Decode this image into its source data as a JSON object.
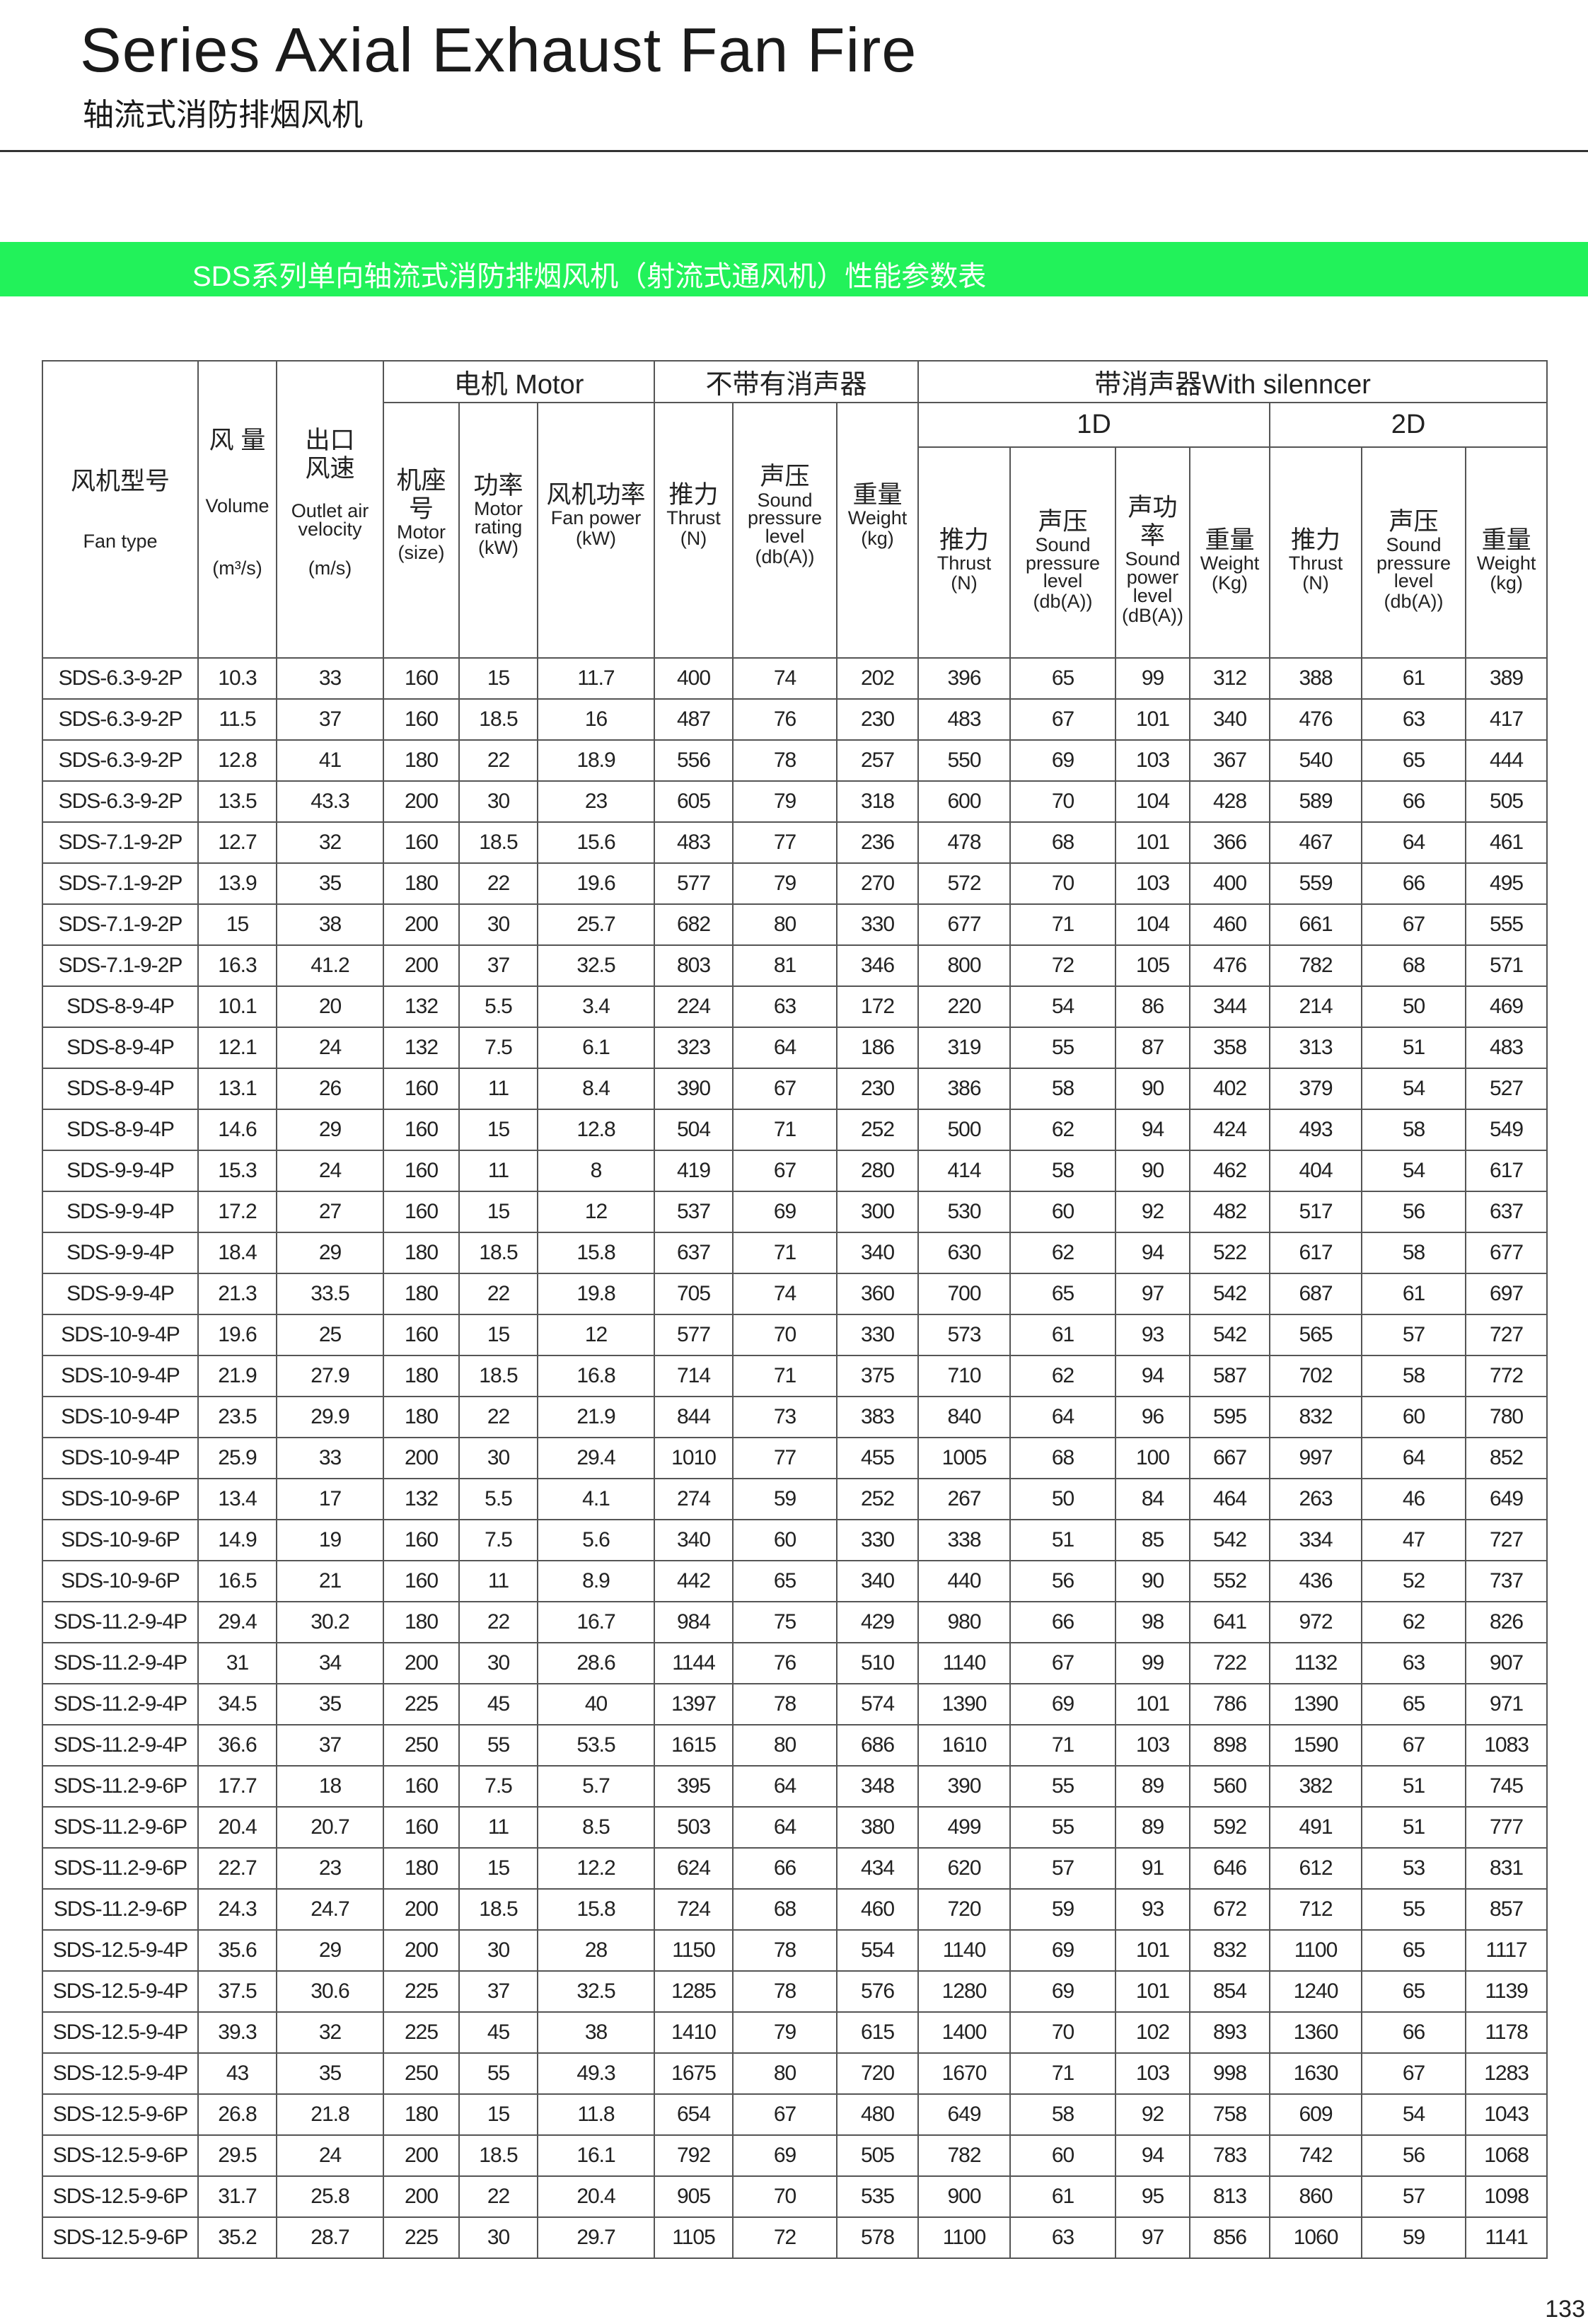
{
  "header": {
    "title": "Series Axial Exhaust Fan Fire",
    "subtitle": "轴流式消防排烟风机"
  },
  "banner": "SDS系列单向轴流式消防排烟风机（射流式通风机）性能参数表",
  "table": {
    "groups": {
      "motor": "电机  Motor",
      "no_silencer": "不带有消声器",
      "with_silencer": "带消声器With silenncer",
      "d1": "1D",
      "d2": "2D"
    },
    "columns": [
      {
        "cn": "风机型号",
        "en": "Fan type"
      },
      {
        "cn": "风 量",
        "en": "Volume",
        "unit": "(m³/s)"
      },
      {
        "cn": [
          "出口",
          "风速"
        ],
        "en": "Outlet air velocity",
        "unit": "(m/s)"
      },
      {
        "cn": "机座号",
        "en": "Motor",
        "unit": "(size)"
      },
      {
        "cn": "功率",
        "en": "Motor rating",
        "unit": "(kW)"
      },
      {
        "cn": "风机功率",
        "en": "Fan power",
        "unit": "(kW)"
      },
      {
        "cn": "推力",
        "en": "Thrust",
        "unit": "(N)"
      },
      {
        "cn": "声压",
        "en": "Sound pressure level",
        "unit": "(db(A))"
      },
      {
        "cn": "重量",
        "en": "Weight",
        "unit": "(kg)"
      },
      {
        "cn": "推力",
        "en": "Thrust",
        "unit": "(N)"
      },
      {
        "cn": "声压",
        "en": "Sound pressure level",
        "unit": "(db(A))"
      },
      {
        "cn": "声功率",
        "en": "Sound power level",
        "unit": "(dB(A))"
      },
      {
        "cn": "重量",
        "en": "Weight",
        "unit": "(Kg)"
      },
      {
        "cn": "推力",
        "en": "Thrust",
        "unit": "(N)"
      },
      {
        "cn": "声压",
        "en": "Sound pressure level",
        "unit": "(db(A))"
      },
      {
        "cn": "重量",
        "en": "Weight",
        "unit": "(kg)"
      }
    ],
    "rows": [
      [
        "SDS-6.3-9-2P",
        10.3,
        33,
        160,
        15,
        11.7,
        400,
        74,
        202,
        396,
        65,
        99,
        312,
        388,
        61,
        389
      ],
      [
        "SDS-6.3-9-2P",
        11.5,
        37,
        160,
        18.5,
        16,
        487,
        76,
        230,
        483,
        67,
        101,
        340,
        476,
        63,
        417
      ],
      [
        "SDS-6.3-9-2P",
        12.8,
        41,
        180,
        22,
        18.9,
        556,
        78,
        257,
        550,
        69,
        103,
        367,
        540,
        65,
        444
      ],
      [
        "SDS-6.3-9-2P",
        13.5,
        43.3,
        200,
        30,
        23,
        605,
        79,
        318,
        600,
        70,
        104,
        428,
        589,
        66,
        505
      ],
      [
        "SDS-7.1-9-2P",
        12.7,
        32,
        160,
        18.5,
        15.6,
        483,
        77,
        236,
        478,
        68,
        101,
        366,
        467,
        64,
        461
      ],
      [
        "SDS-7.1-9-2P",
        13.9,
        35,
        180,
        22,
        19.6,
        577,
        79,
        270,
        572,
        70,
        103,
        400,
        559,
        66,
        495
      ],
      [
        "SDS-7.1-9-2P",
        15,
        38,
        200,
        30,
        25.7,
        682,
        80,
        330,
        677,
        71,
        104,
        460,
        661,
        67,
        555
      ],
      [
        "SDS-7.1-9-2P",
        16.3,
        41.2,
        200,
        37,
        32.5,
        803,
        81,
        346,
        800,
        72,
        105,
        476,
        782,
        68,
        571
      ],
      [
        "SDS-8-9-4P",
        10.1,
        20,
        132,
        5.5,
        3.4,
        224,
        63,
        172,
        220,
        54,
        86,
        344,
        214,
        50,
        469
      ],
      [
        "SDS-8-9-4P",
        12.1,
        24,
        132,
        7.5,
        6.1,
        323,
        64,
        186,
        319,
        55,
        87,
        358,
        313,
        51,
        483
      ],
      [
        "SDS-8-9-4P",
        13.1,
        26,
        160,
        11,
        8.4,
        390,
        67,
        230,
        386,
        58,
        90,
        402,
        379,
        54,
        527
      ],
      [
        "SDS-8-9-4P",
        14.6,
        29,
        160,
        15,
        12.8,
        504,
        71,
        252,
        500,
        62,
        94,
        424,
        493,
        58,
        549
      ],
      [
        "SDS-9-9-4P",
        15.3,
        24,
        160,
        11,
        8,
        419,
        67,
        280,
        414,
        58,
        90,
        462,
        404,
        54,
        617
      ],
      [
        "SDS-9-9-4P",
        17.2,
        27,
        160,
        15,
        12,
        537,
        69,
        300,
        530,
        60,
        92,
        482,
        517,
        56,
        637
      ],
      [
        "SDS-9-9-4P",
        18.4,
        29,
        180,
        18.5,
        15.8,
        637,
        71,
        340,
        630,
        62,
        94,
        522,
        617,
        58,
        677
      ],
      [
        "SDS-9-9-4P",
        21.3,
        33.5,
        180,
        22,
        19.8,
        705,
        74,
        360,
        700,
        65,
        97,
        542,
        687,
        61,
        697
      ],
      [
        "SDS-10-9-4P",
        19.6,
        25,
        160,
        15,
        12,
        577,
        70,
        330,
        573,
        61,
        93,
        542,
        565,
        57,
        727
      ],
      [
        "SDS-10-9-4P",
        21.9,
        27.9,
        180,
        18.5,
        16.8,
        714,
        71,
        375,
        710,
        62,
        94,
        587,
        702,
        58,
        772
      ],
      [
        "SDS-10-9-4P",
        23.5,
        29.9,
        180,
        22,
        21.9,
        844,
        73,
        383,
        840,
        64,
        96,
        595,
        832,
        60,
        780
      ],
      [
        "SDS-10-9-4P",
        25.9,
        33,
        200,
        30,
        29.4,
        1010,
        77,
        455,
        1005,
        68,
        100,
        667,
        997,
        64,
        852
      ],
      [
        "SDS-10-9-6P",
        13.4,
        17,
        132,
        5.5,
        4.1,
        274,
        59,
        252,
        267,
        50,
        84,
        464,
        263,
        46,
        649
      ],
      [
        "SDS-10-9-6P",
        14.9,
        19,
        160,
        7.5,
        5.6,
        340,
        60,
        330,
        338,
        51,
        85,
        542,
        334,
        47,
        727
      ],
      [
        "SDS-10-9-6P",
        16.5,
        21,
        160,
        11,
        8.9,
        442,
        65,
        340,
        440,
        56,
        90,
        552,
        436,
        52,
        737
      ],
      [
        "SDS-11.2-9-4P",
        29.4,
        30.2,
        180,
        22,
        16.7,
        984,
        75,
        429,
        980,
        66,
        98,
        641,
        972,
        62,
        826
      ],
      [
        "SDS-11.2-9-4P",
        31,
        34,
        200,
        30,
        28.6,
        1144,
        76,
        510,
        1140,
        67,
        99,
        722,
        1132,
        63,
        907
      ],
      [
        "SDS-11.2-9-4P",
        34.5,
        35,
        225,
        45,
        40,
        1397,
        78,
        574,
        1390,
        69,
        101,
        786,
        1390,
        65,
        971
      ],
      [
        "SDS-11.2-9-4P",
        36.6,
        37,
        250,
        55,
        53.5,
        1615,
        80,
        686,
        1610,
        71,
        103,
        898,
        1590,
        67,
        1083
      ],
      [
        "SDS-11.2-9-6P",
        17.7,
        18,
        160,
        7.5,
        5.7,
        395,
        64,
        348,
        390,
        55,
        89,
        560,
        382,
        51,
        745
      ],
      [
        "SDS-11.2-9-6P",
        20.4,
        20.7,
        160,
        11,
        8.5,
        503,
        64,
        380,
        499,
        55,
        89,
        592,
        491,
        51,
        777
      ],
      [
        "SDS-11.2-9-6P",
        22.7,
        23,
        180,
        15,
        12.2,
        624,
        66,
        434,
        620,
        57,
        91,
        646,
        612,
        53,
        831
      ],
      [
        "SDS-11.2-9-6P",
        24.3,
        24.7,
        200,
        18.5,
        15.8,
        724,
        68,
        460,
        720,
        59,
        93,
        672,
        712,
        55,
        857
      ],
      [
        "SDS-12.5-9-4P",
        35.6,
        29,
        200,
        30,
        28,
        1150,
        78,
        554,
        1140,
        69,
        101,
        832,
        1100,
        65,
        1117
      ],
      [
        "SDS-12.5-9-4P",
        37.5,
        30.6,
        225,
        37,
        32.5,
        1285,
        78,
        576,
        1280,
        69,
        101,
        854,
        1240,
        65,
        1139
      ],
      [
        "SDS-12.5-9-4P",
        39.3,
        32,
        225,
        45,
        38,
        1410,
        79,
        615,
        1400,
        70,
        102,
        893,
        1360,
        66,
        1178
      ],
      [
        "SDS-12.5-9-4P",
        43,
        35,
        250,
        55,
        49.3,
        1675,
        80,
        720,
        1670,
        71,
        103,
        998,
        1630,
        67,
        1283
      ],
      [
        "SDS-12.5-9-6P",
        26.8,
        21.8,
        180,
        15,
        11.8,
        654,
        67,
        480,
        649,
        58,
        92,
        758,
        609,
        54,
        1043
      ],
      [
        "SDS-12.5-9-6P",
        29.5,
        24,
        200,
        18.5,
        16.1,
        792,
        69,
        505,
        782,
        60,
        94,
        783,
        742,
        56,
        1068
      ],
      [
        "SDS-12.5-9-6P",
        31.7,
        25.8,
        200,
        22,
        20.4,
        905,
        70,
        535,
        900,
        61,
        95,
        813,
        860,
        57,
        1098
      ],
      [
        "SDS-12.5-9-6P",
        35.2,
        28.7,
        225,
        30,
        29.7,
        1105,
        72,
        578,
        1100,
        63,
        97,
        856,
        1060,
        59,
        1141
      ]
    ]
  },
  "page_number": 133
}
